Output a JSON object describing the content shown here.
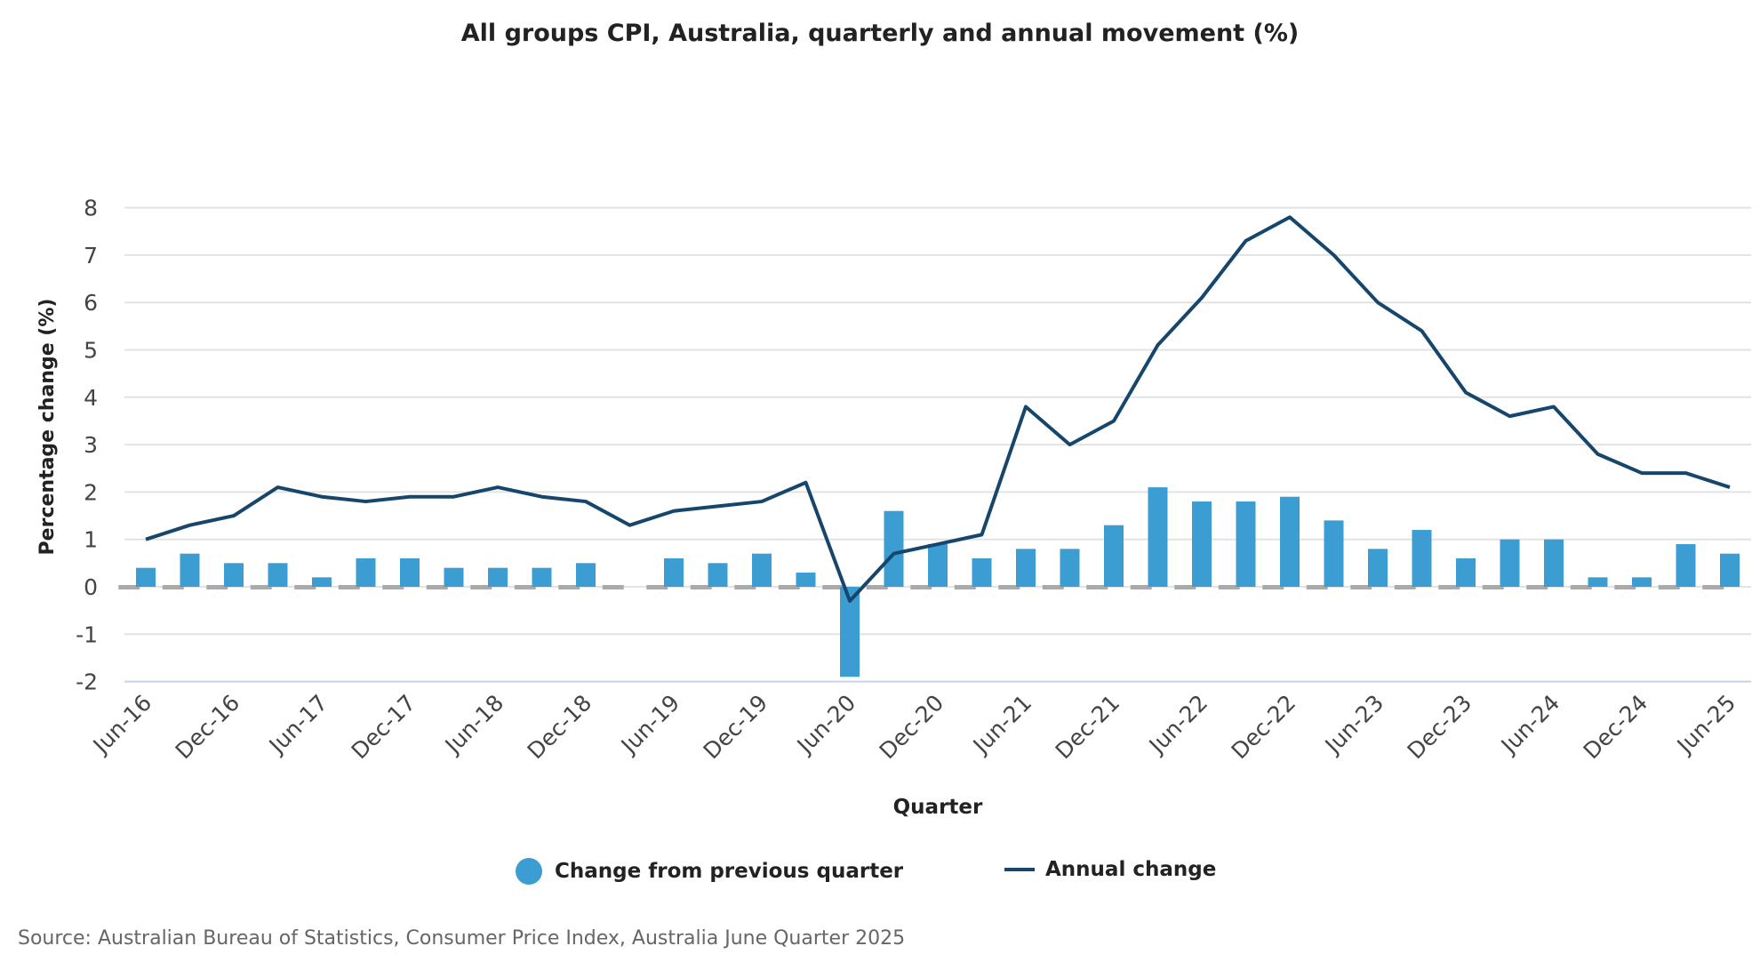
{
  "chart_data": {
    "type": "bar+line",
    "title": "All groups CPI, Australia, quarterly and annual movement (%)",
    "xlabel": "Quarter",
    "ylabel": "Percentage change (%)",
    "ylim": [
      -2,
      8
    ],
    "yticks": [
      -2,
      -1,
      0,
      1,
      2,
      3,
      4,
      5,
      6,
      7,
      8
    ],
    "grid": true,
    "legend_position": "bottom",
    "categories": [
      "Jun-16",
      "Sep-16",
      "Dec-16",
      "Mar-17",
      "Jun-17",
      "Sep-17",
      "Dec-17",
      "Mar-18",
      "Jun-18",
      "Sep-18",
      "Dec-18",
      "Mar-19",
      "Jun-19",
      "Sep-19",
      "Dec-19",
      "Mar-20",
      "Jun-20",
      "Sep-20",
      "Dec-20",
      "Mar-21",
      "Jun-21",
      "Sep-21",
      "Dec-21",
      "Mar-22",
      "Jun-22",
      "Sep-22",
      "Dec-22",
      "Mar-23",
      "Jun-23",
      "Sep-23",
      "Dec-23",
      "Mar-24",
      "Jun-24",
      "Sep-24",
      "Dec-24",
      "Mar-25",
      "Jun-25"
    ],
    "tick_labels": [
      "Jun-16",
      "Dec-16",
      "Jun-17",
      "Dec-17",
      "Jun-18",
      "Dec-18",
      "Jun-19",
      "Dec-19",
      "Jun-20",
      "Dec-20",
      "Jun-21",
      "Dec-21",
      "Jun-22",
      "Dec-22",
      "Jun-23",
      "Dec-23",
      "Jun-24",
      "Dec-24",
      "Jun-25"
    ],
    "series": [
      {
        "name": "Change from previous quarter",
        "type": "bar",
        "color": "#3c9dd2",
        "values": [
          0.4,
          0.7,
          0.5,
          0.5,
          0.2,
          0.6,
          0.6,
          0.4,
          0.4,
          0.4,
          0.5,
          0.0,
          0.6,
          0.5,
          0.7,
          0.3,
          -1.9,
          1.6,
          0.9,
          0.6,
          0.8,
          0.8,
          1.3,
          2.1,
          1.8,
          1.8,
          1.9,
          1.4,
          0.8,
          1.2,
          0.6,
          1.0,
          1.0,
          0.2,
          0.2,
          0.9,
          0.7
        ]
      },
      {
        "name": "Annual change",
        "type": "line",
        "color": "#16466b",
        "values": [
          1.0,
          1.3,
          1.5,
          2.1,
          1.9,
          1.8,
          1.9,
          1.9,
          2.1,
          1.9,
          1.8,
          1.3,
          1.6,
          1.7,
          1.8,
          2.2,
          -0.3,
          0.7,
          0.9,
          1.1,
          3.8,
          3.0,
          3.5,
          5.1,
          6.1,
          7.3,
          7.8,
          7.0,
          6.0,
          5.4,
          4.1,
          3.6,
          3.8,
          2.8,
          2.4,
          2.4,
          2.1
        ]
      }
    ]
  },
  "source": "Source: Australian Bureau of Statistics, Consumer Price Index, Australia June Quarter 2025"
}
